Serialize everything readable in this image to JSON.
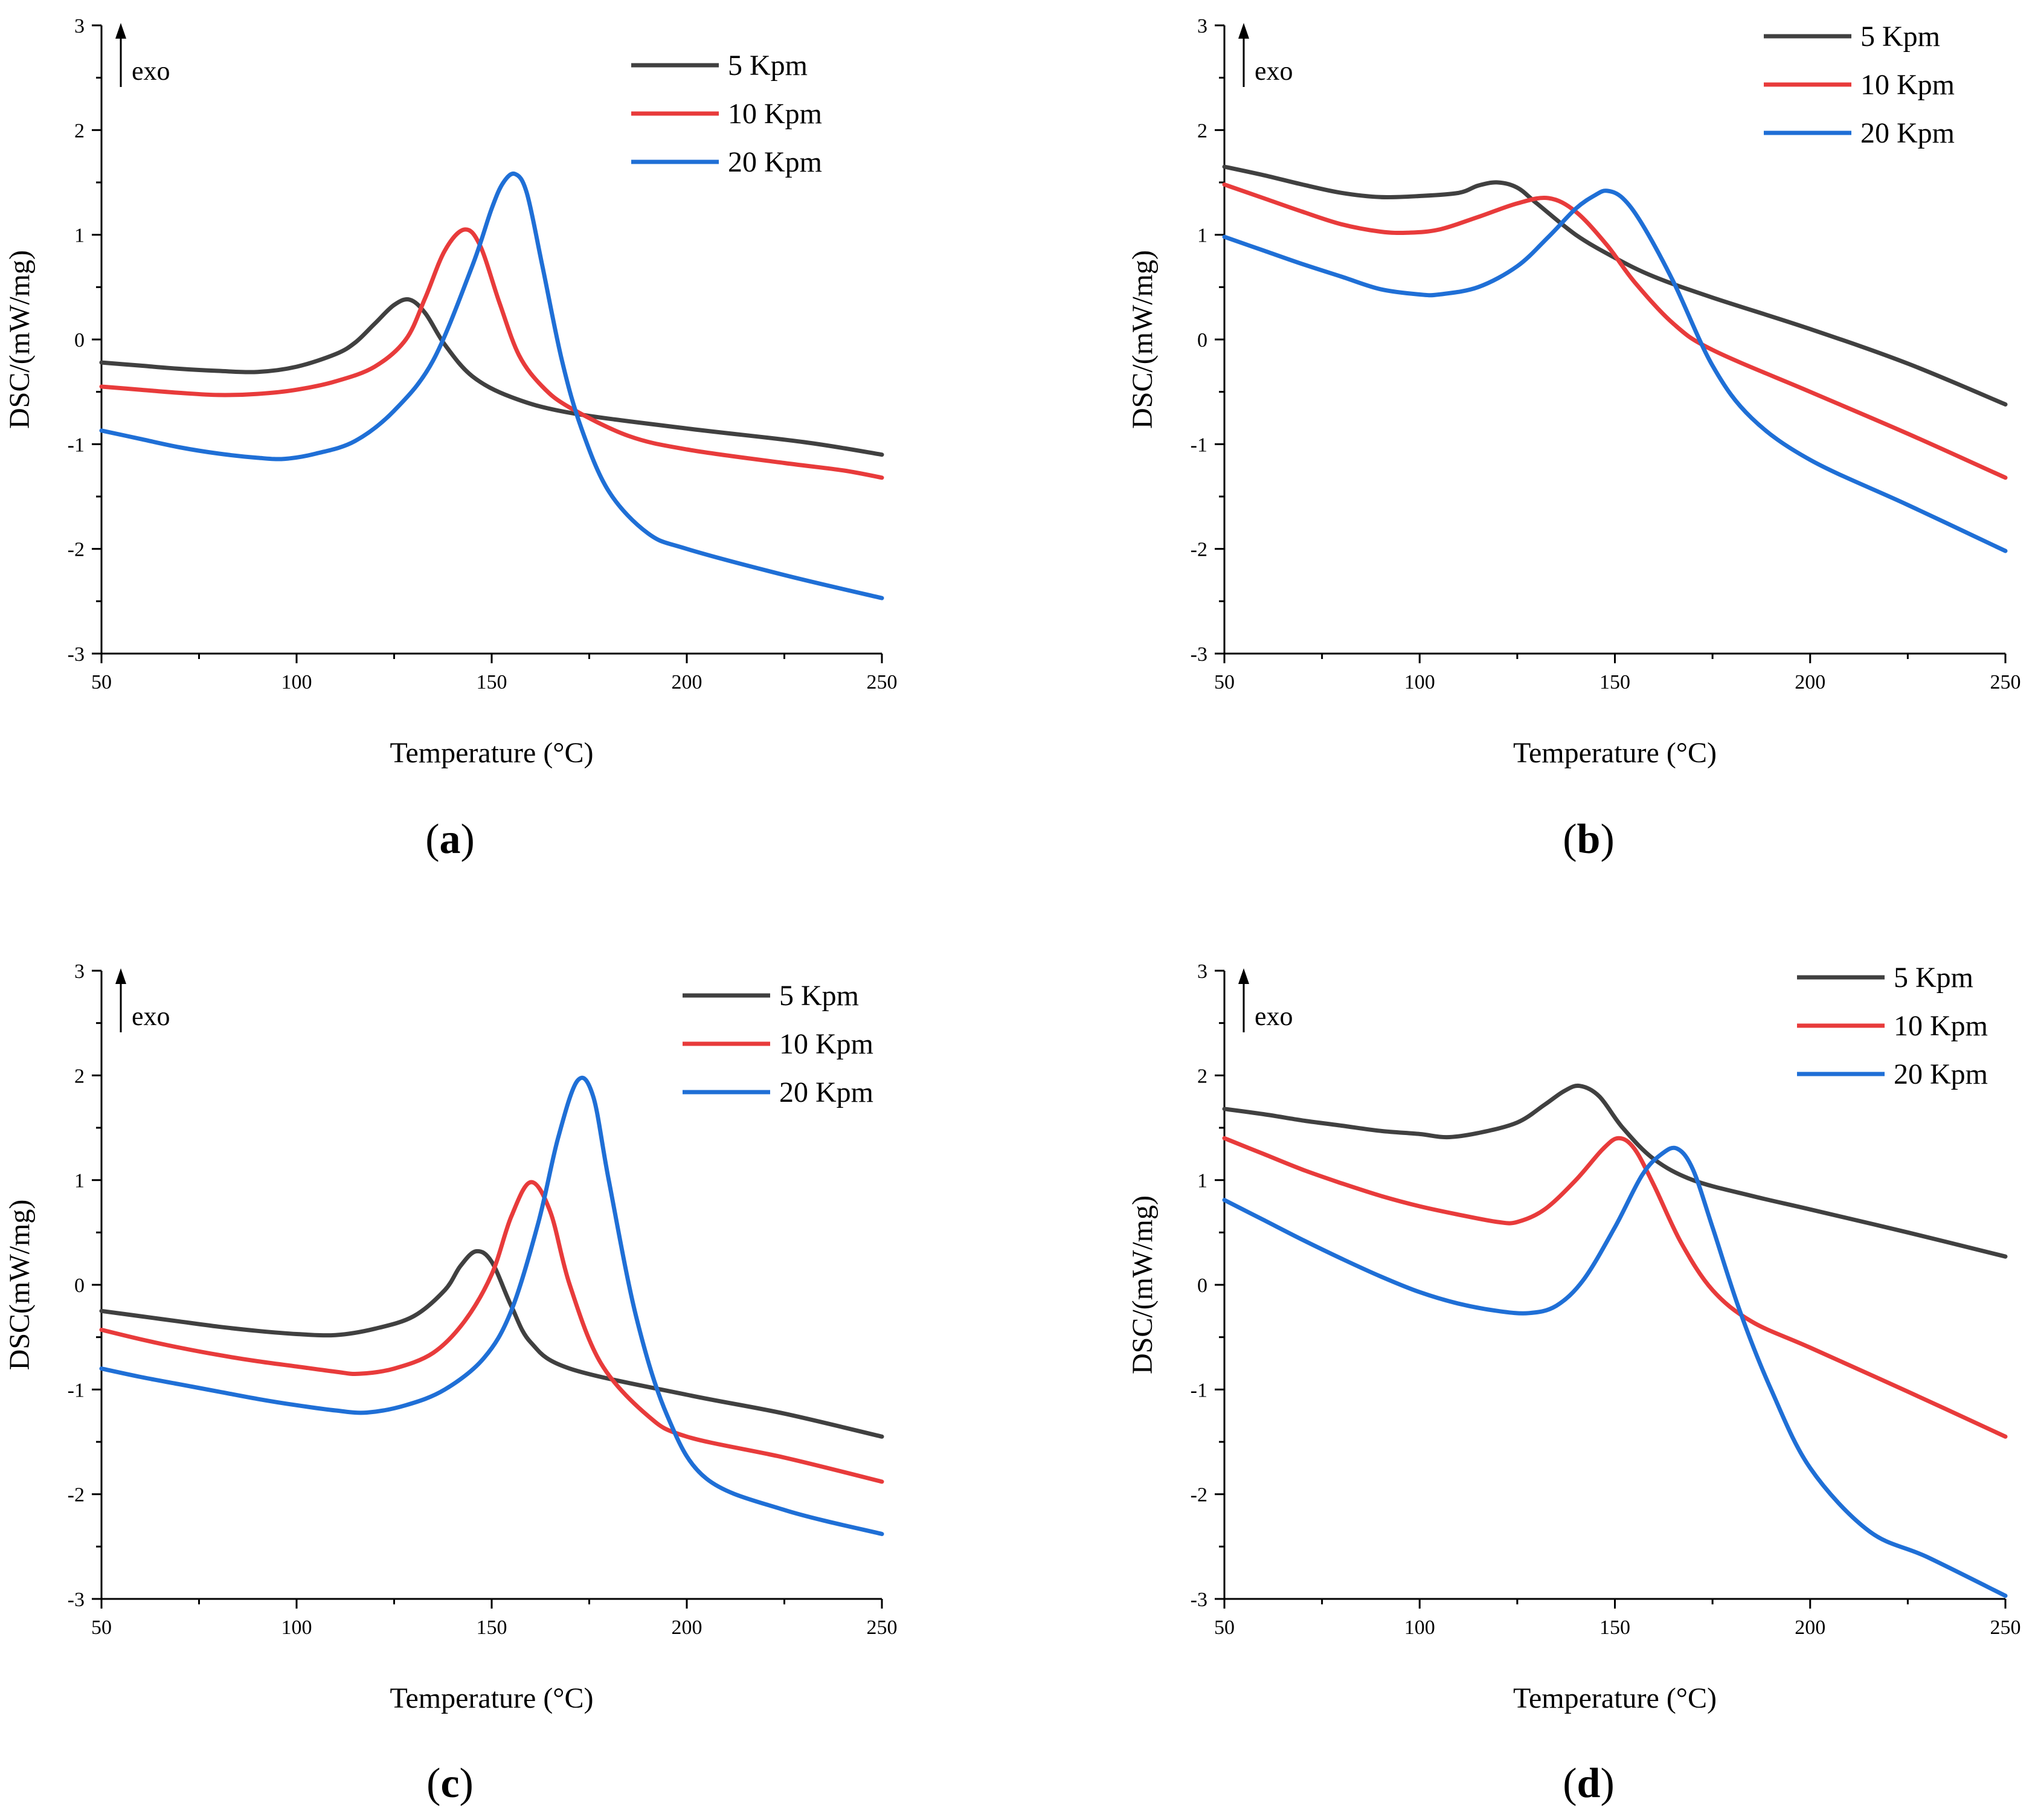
{
  "figure": {
    "panels": [
      "a",
      "b",
      "c",
      "d"
    ]
  },
  "colors": {
    "5 Kpm": "#404040",
    "10 Kpm": "#e83b3b",
    "20 Kpm": "#1f6fd6"
  },
  "chart_data": [
    {
      "id": "a",
      "type": "line",
      "panel_label": "a",
      "xlabel": "Temperature (°C)",
      "ylabel": "DSC/(mW/mg)",
      "annotation": "exo",
      "xlim": [
        50,
        250
      ],
      "ylim": [
        -3,
        3
      ],
      "xticks": [
        "50",
        "100",
        "150",
        "200",
        "250"
      ],
      "yticks": [
        "-3",
        "-2",
        "-1",
        "0",
        "1",
        "2",
        "3"
      ],
      "legend": [
        "5 Kpm",
        "10 Kpm",
        "20 Kpm"
      ],
      "series": [
        {
          "name": "5 Kpm",
          "x": [
            50,
            60,
            70,
            80,
            90,
            100,
            110,
            115,
            120,
            125,
            129,
            133,
            138,
            145,
            155,
            170,
            200,
            230,
            250
          ],
          "y": [
            -0.22,
            -0.25,
            -0.28,
            -0.3,
            -0.31,
            -0.26,
            -0.14,
            -0.03,
            0.15,
            0.33,
            0.38,
            0.25,
            -0.05,
            -0.35,
            -0.55,
            -0.7,
            -0.85,
            -0.98,
            -1.1
          ]
        },
        {
          "name": "10 Kpm",
          "x": [
            50,
            60,
            70,
            80,
            90,
            100,
            110,
            120,
            128,
            133,
            138,
            143,
            147,
            152,
            157,
            163,
            170,
            185,
            200,
            225,
            240,
            250
          ],
          "y": [
            -0.45,
            -0.48,
            -0.51,
            -0.53,
            -0.52,
            -0.48,
            -0.4,
            -0.26,
            0.0,
            0.4,
            0.85,
            1.05,
            0.9,
            0.35,
            -0.15,
            -0.45,
            -0.65,
            -0.92,
            -1.05,
            -1.18,
            -1.25,
            -1.32
          ]
        },
        {
          "name": "20 Kpm",
          "x": [
            50,
            60,
            70,
            80,
            90,
            97,
            105,
            115,
            125,
            135,
            145,
            150,
            153,
            156,
            159,
            163,
            168,
            173,
            180,
            190,
            200,
            225,
            250
          ],
          "y": [
            -0.87,
            -0.95,
            -1.03,
            -1.09,
            -1.13,
            -1.14,
            -1.09,
            -0.97,
            -0.68,
            -0.2,
            0.7,
            1.25,
            1.5,
            1.58,
            1.4,
            0.7,
            -0.2,
            -0.85,
            -1.45,
            -1.85,
            -2.0,
            -2.25,
            -2.47
          ]
        }
      ]
    },
    {
      "id": "b",
      "type": "line",
      "panel_label": "b",
      "xlabel": "Temperature (°C)",
      "ylabel": "DSC/(mW/mg)",
      "annotation": "exo",
      "xlim": [
        50,
        250
      ],
      "ylim": [
        -3,
        3
      ],
      "xticks": [
        "50",
        "100",
        "150",
        "200",
        "250"
      ],
      "yticks": [
        "-3",
        "-2",
        "-1",
        "0",
        "1",
        "2",
        "3"
      ],
      "legend": [
        "5 Kpm",
        "10 Kpm",
        "20 Kpm"
      ],
      "series": [
        {
          "name": "5 Kpm",
          "x": [
            50,
            60,
            70,
            80,
            90,
            100,
            110,
            115,
            120,
            125,
            130,
            140,
            150,
            160,
            175,
            200,
            225,
            250
          ],
          "y": [
            1.65,
            1.57,
            1.48,
            1.4,
            1.36,
            1.37,
            1.4,
            1.47,
            1.5,
            1.45,
            1.3,
            1.0,
            0.78,
            0.6,
            0.4,
            0.1,
            -0.23,
            -0.62
          ]
        },
        {
          "name": "10 Kpm",
          "x": [
            50,
            60,
            70,
            80,
            90,
            97,
            105,
            115,
            125,
            133,
            140,
            148,
            155,
            165,
            175,
            200,
            225,
            250
          ],
          "y": [
            1.48,
            1.35,
            1.22,
            1.1,
            1.03,
            1.02,
            1.05,
            1.17,
            1.3,
            1.35,
            1.22,
            0.9,
            0.55,
            0.15,
            -0.1,
            -0.5,
            -0.9,
            -1.32
          ]
        },
        {
          "name": "20 Kpm",
          "x": [
            50,
            60,
            70,
            80,
            90,
            100,
            105,
            115,
            125,
            133,
            140,
            145,
            148,
            152,
            157,
            165,
            175,
            185,
            200,
            225,
            250
          ],
          "y": [
            0.98,
            0.85,
            0.72,
            0.6,
            0.48,
            0.43,
            0.43,
            0.5,
            0.7,
            0.98,
            1.25,
            1.38,
            1.42,
            1.35,
            1.1,
            0.55,
            -0.25,
            -0.75,
            -1.15,
            -1.58,
            -2.02
          ]
        }
      ]
    },
    {
      "id": "c",
      "type": "line",
      "panel_label": "c",
      "xlabel": "Temperature (°C)",
      "ylabel": "DSC(mW/mg)",
      "annotation": "exo",
      "xlim": [
        50,
        250
      ],
      "ylim": [
        -3,
        3
      ],
      "xticks": [
        "50",
        "100",
        "150",
        "200",
        "250"
      ],
      "yticks": [
        "-3",
        "-2",
        "-1",
        "0",
        "1",
        "2",
        "3"
      ],
      "legend": [
        "5 Kpm",
        "10 Kpm",
        "20 Kpm"
      ],
      "series": [
        {
          "name": "5 Kpm",
          "x": [
            50,
            60,
            70,
            80,
            90,
            100,
            110,
            120,
            130,
            138,
            142,
            146,
            150,
            155,
            160,
            170,
            200,
            225,
            250
          ],
          "y": [
            -0.25,
            -0.3,
            -0.35,
            -0.4,
            -0.44,
            -0.47,
            -0.48,
            -0.42,
            -0.3,
            -0.05,
            0.18,
            0.32,
            0.22,
            -0.2,
            -0.55,
            -0.8,
            -1.05,
            -1.23,
            -1.45
          ]
        },
        {
          "name": "10 Kpm",
          "x": [
            50,
            60,
            70,
            80,
            90,
            100,
            110,
            116,
            125,
            135,
            143,
            150,
            155,
            160,
            165,
            170,
            178,
            190,
            200,
            225,
            250
          ],
          "y": [
            -0.43,
            -0.52,
            -0.6,
            -0.67,
            -0.73,
            -0.78,
            -0.83,
            -0.85,
            -0.8,
            -0.65,
            -0.35,
            0.1,
            0.65,
            0.98,
            0.7,
            0.0,
            -0.75,
            -1.25,
            -1.45,
            -1.65,
            -1.88
          ]
        },
        {
          "name": "20 Kpm",
          "x": [
            50,
            60,
            70,
            80,
            90,
            100,
            110,
            118,
            128,
            138,
            148,
            155,
            162,
            167,
            172,
            176,
            180,
            187,
            195,
            205,
            225,
            250
          ],
          "y": [
            -0.8,
            -0.88,
            -0.95,
            -1.02,
            -1.09,
            -1.15,
            -1.2,
            -1.22,
            -1.15,
            -1.0,
            -0.7,
            -0.25,
            0.6,
            1.4,
            1.95,
            1.8,
            1.0,
            -0.3,
            -1.25,
            -1.85,
            -2.15,
            -2.38
          ]
        }
      ]
    },
    {
      "id": "d",
      "type": "line",
      "panel_label": "d",
      "xlabel": "Temperature (°C)",
      "ylabel": "DSC/(mW/mg)",
      "annotation": "exo",
      "xlim": [
        50,
        250
      ],
      "ylim": [
        -3,
        3
      ],
      "xticks": [
        "50",
        "100",
        "150",
        "200",
        "250"
      ],
      "yticks": [
        "-3",
        "-2",
        "-1",
        "0",
        "1",
        "2",
        "3"
      ],
      "legend": [
        "5 Kpm",
        "10 Kpm",
        "20 Kpm"
      ],
      "series": [
        {
          "name": "5 Kpm",
          "x": [
            50,
            60,
            70,
            80,
            90,
            100,
            107,
            115,
            125,
            132,
            137,
            141,
            146,
            152,
            160,
            170,
            185,
            200,
            225,
            250
          ],
          "y": [
            1.68,
            1.63,
            1.57,
            1.52,
            1.47,
            1.44,
            1.41,
            1.45,
            1.55,
            1.72,
            1.85,
            1.9,
            1.8,
            1.5,
            1.2,
            1.0,
            0.85,
            0.72,
            0.5,
            0.27
          ]
        },
        {
          "name": "10 Kpm",
          "x": [
            50,
            60,
            70,
            80,
            90,
            100,
            110,
            120,
            125,
            132,
            140,
            147,
            151,
            155,
            160,
            167,
            175,
            185,
            200,
            225,
            250
          ],
          "y": [
            1.4,
            1.25,
            1.1,
            0.97,
            0.85,
            0.75,
            0.67,
            0.6,
            0.6,
            0.72,
            1.0,
            1.3,
            1.4,
            1.3,
            0.95,
            0.4,
            -0.05,
            -0.35,
            -0.6,
            -1.02,
            -1.45
          ]
        },
        {
          "name": "20 Kpm",
          "x": [
            50,
            60,
            70,
            80,
            90,
            100,
            110,
            120,
            128,
            135,
            142,
            150,
            157,
            162,
            166,
            170,
            175,
            182,
            190,
            200,
            215,
            230,
            250
          ],
          "y": [
            0.81,
            0.62,
            0.43,
            0.25,
            0.08,
            -0.07,
            -0.18,
            -0.25,
            -0.27,
            -0.2,
            0.05,
            0.55,
            1.05,
            1.25,
            1.3,
            1.1,
            0.55,
            -0.25,
            -1.0,
            -1.75,
            -2.35,
            -2.6,
            -2.97
          ]
        }
      ]
    }
  ]
}
